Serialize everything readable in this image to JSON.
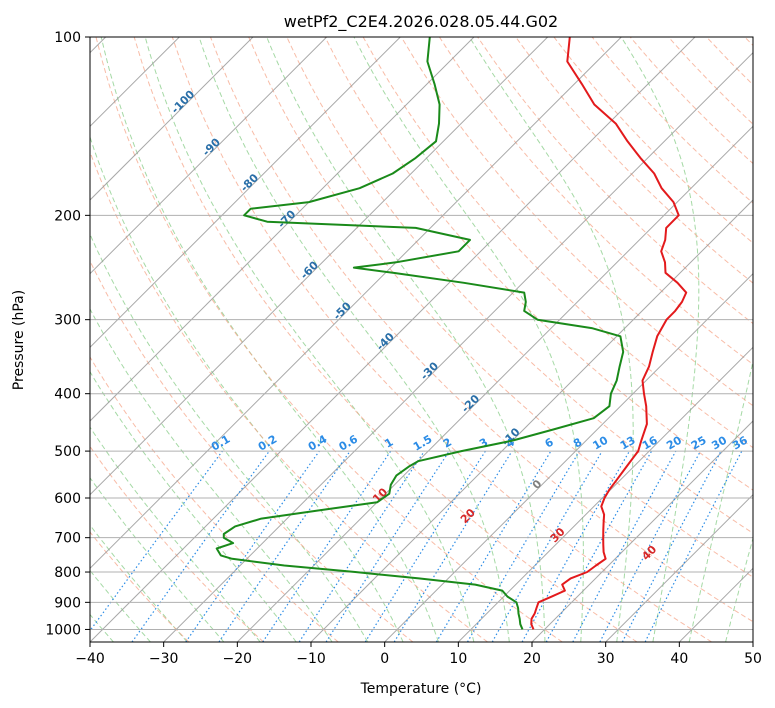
{
  "chart_data": {
    "type": "line",
    "subtype": "skew-t log-p diagram",
    "title": "wetPf2_C2E4.2026.028.05.44.G02",
    "xlabel": "Temperature (°C)",
    "ylabel": "Pressure (hPa)",
    "xlim": [
      -40,
      50
    ],
    "ylim": [
      1050,
      100
    ],
    "y_scale": "log",
    "x_ticks": [
      "−40",
      "−30",
      "−20",
      "−10",
      "0",
      "10",
      "20",
      "30",
      "40",
      "50"
    ],
    "y_ticks": [
      "100",
      "200",
      "300",
      "400",
      "500",
      "600",
      "700",
      "800",
      "900",
      "1000"
    ],
    "grid": true,
    "colors": {
      "temperature": "#e31a1c",
      "dewpoint": "#1a8a1a",
      "isotherm": "#9a9a9a",
      "dry_adiabat": "#f6a58a",
      "moist_adiabat": "#8fcf8f",
      "mixing_ratio": "#2b8ce6",
      "isotherm_label": "#2a6fa8",
      "dry_adiabat_label": "#d62728"
    },
    "series": [
      {
        "key": "temperature",
        "points": [
          [
            18.5,
            1000
          ],
          [
            17.5,
            980
          ],
          [
            16.8,
            960
          ],
          [
            16.5,
            940
          ],
          [
            16.0,
            920
          ],
          [
            15.5,
            900
          ],
          [
            16.5,
            880
          ],
          [
            17.5,
            860
          ],
          [
            16.3,
            840
          ],
          [
            16.6,
            820
          ],
          [
            18.0,
            800
          ],
          [
            18.3,
            780
          ],
          [
            18.7,
            760
          ],
          [
            17.5,
            740
          ],
          [
            16.5,
            720
          ],
          [
            15.5,
            700
          ],
          [
            14.5,
            680
          ],
          [
            13.5,
            660
          ],
          [
            12.5,
            640
          ],
          [
            11.0,
            620
          ],
          [
            10.3,
            600
          ],
          [
            9.8,
            580
          ],
          [
            9.5,
            560
          ],
          [
            9.0,
            530
          ],
          [
            8.5,
            500
          ],
          [
            7.5,
            480
          ],
          [
            6.0,
            450
          ],
          [
            3.5,
            420
          ],
          [
            1.5,
            400
          ],
          [
            -0.5,
            380
          ],
          [
            -1.5,
            360
          ],
          [
            -3.0,
            340
          ],
          [
            -4.5,
            320
          ],
          [
            -5.5,
            300
          ],
          [
            -5.5,
            290
          ],
          [
            -5.8,
            280
          ],
          [
            -6.5,
            270
          ],
          [
            -9.0,
            260
          ],
          [
            -12.0,
            250
          ],
          [
            -13.5,
            240
          ],
          [
            -15.5,
            230
          ],
          [
            -16.5,
            220
          ],
          [
            -18.0,
            210
          ],
          [
            -18.0,
            200
          ],
          [
            -20.5,
            190
          ],
          [
            -24.0,
            180
          ],
          [
            -27.0,
            170
          ],
          [
            -31.0,
            160
          ],
          [
            -35.0,
            150
          ],
          [
            -39.0,
            140
          ],
          [
            -44.5,
            130
          ],
          [
            -49.0,
            120
          ],
          [
            -54.0,
            110
          ],
          [
            -57.0,
            100
          ]
        ]
      },
      {
        "key": "dewpoint",
        "points": [
          [
            17.0,
            1000
          ],
          [
            16.0,
            980
          ],
          [
            15.2,
            960
          ],
          [
            14.3,
            940
          ],
          [
            13.5,
            920
          ],
          [
            12.5,
            900
          ],
          [
            10.5,
            880
          ],
          [
            9.0,
            860
          ],
          [
            4.5,
            840
          ],
          [
            -4.0,
            820
          ],
          [
            -13.5,
            800
          ],
          [
            -24.0,
            780
          ],
          [
            -32.0,
            760
          ],
          [
            -34.0,
            750
          ],
          [
            -35.5,
            730
          ],
          [
            -34.0,
            715
          ],
          [
            -36.0,
            700
          ],
          [
            -36.5,
            690
          ],
          [
            -36.0,
            670
          ],
          [
            -33.5,
            650
          ],
          [
            -27.0,
            630
          ],
          [
            -20.0,
            610
          ],
          [
            -19.5,
            590
          ],
          [
            -20.5,
            570
          ],
          [
            -21.0,
            550
          ],
          [
            -20.5,
            530
          ],
          [
            -20.0,
            520
          ],
          [
            -15.5,
            500
          ],
          [
            -10.0,
            480
          ],
          [
            -6.0,
            460
          ],
          [
            -2.0,
            440
          ],
          [
            -1.5,
            420
          ],
          [
            -3.0,
            400
          ],
          [
            -4.0,
            380
          ],
          [
            -5.5,
            360
          ],
          [
            -7.0,
            340
          ],
          [
            -9.5,
            320
          ],
          [
            -14.5,
            310
          ],
          [
            -23.0,
            300
          ],
          [
            -26.0,
            290
          ],
          [
            -27.0,
            280
          ],
          [
            -28.5,
            270
          ],
          [
            -38.0,
            260
          ],
          [
            -49.0,
            250
          ],
          [
            -55.0,
            245
          ],
          [
            -50.0,
            240
          ],
          [
            -43.0,
            230
          ],
          [
            -43.0,
            220
          ],
          [
            -52.0,
            210
          ],
          [
            -73.0,
            205
          ],
          [
            -77.0,
            200
          ],
          [
            -77.0,
            195
          ],
          [
            -70.0,
            190
          ],
          [
            -65.0,
            180
          ],
          [
            -62.5,
            170
          ],
          [
            -61.5,
            160
          ],
          [
            -61.0,
            150
          ],
          [
            -63.0,
            140
          ],
          [
            -65.5,
            130
          ],
          [
            -69.0,
            120
          ],
          [
            -73.0,
            110
          ],
          [
            -76.0,
            100
          ]
        ]
      }
    ],
    "isotherm_labels": [
      "-100",
      "-90",
      "-80",
      "-70",
      "-60",
      "-50",
      "-40",
      "-30",
      "-20",
      "-10",
      "0"
    ],
    "mixing_ratio_labels": [
      "0.1",
      "0.2",
      "0.4",
      "0.6",
      "1",
      "1.5",
      "2",
      "3",
      "4",
      "6",
      "8",
      "10",
      "13",
      "16",
      "20",
      "25",
      "30",
      "36"
    ],
    "dry_adiabat_labels": [
      "10",
      "20",
      "30",
      "40"
    ]
  }
}
